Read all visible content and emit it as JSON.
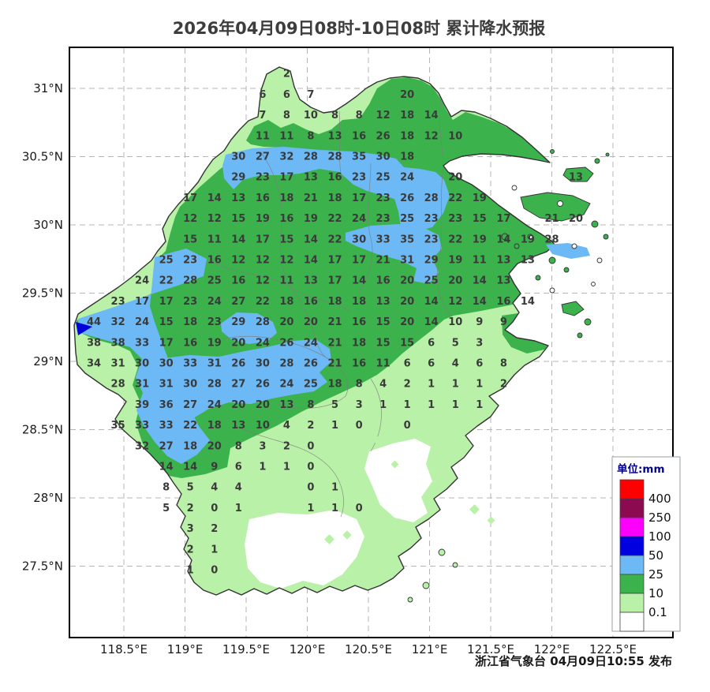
{
  "title": "2026年04月09日08时-10日08时 累计降水预报",
  "publisher": "浙江省气象台 04月09日10:55 发布",
  "legend": {
    "title": "单位:mm",
    "swatches": [
      "#fe0000",
      "#8b0a50",
      "#fd00fd",
      "#0000e1",
      "#6db9f5",
      "#3cb24c",
      "#b9f1a8",
      "#ffffff"
    ],
    "labels": [
      "400",
      "250",
      "100",
      "50",
      "25",
      "10",
      "0.1"
    ]
  },
  "axes": {
    "lat_labels": [
      "31°N",
      "30.5°N",
      "30°N",
      "29.5°N",
      "29°N",
      "28.5°N",
      "28°N",
      "27.5°N"
    ],
    "lon_labels": [
      "118.5°E",
      "119°E",
      "119.5°E",
      "120°E",
      "120.5°E",
      "121°E",
      "121.5°E",
      "122°E",
      "122.5°E"
    ]
  },
  "colors": {
    "green": "#3cb24c",
    "light_green": "#b9f1a8",
    "light_blue": "#6db9f5",
    "dark_blue": "#0000dd",
    "white": "#ffffff"
  },
  "chart_data": {
    "type": "heatmap",
    "subtype": "gridded-precipitation-map",
    "unit": "mm",
    "region": "浙江省",
    "legend_thresholds": [
      400,
      250,
      100,
      50,
      25,
      10,
      0.1
    ],
    "values": [
      [
        0,
        8,
        2
      ],
      [
        1,
        7,
        6
      ],
      [
        1,
        8,
        6
      ],
      [
        1,
        9,
        7
      ],
      [
        1,
        13,
        20
      ],
      [
        2,
        7,
        7
      ],
      [
        2,
        8,
        8
      ],
      [
        2,
        9,
        10
      ],
      [
        2,
        10,
        8
      ],
      [
        2,
        11,
        8
      ],
      [
        2,
        12,
        12
      ],
      [
        2,
        13,
        18
      ],
      [
        2,
        14,
        14
      ],
      [
        3,
        7,
        11
      ],
      [
        3,
        8,
        11
      ],
      [
        3,
        9,
        8
      ],
      [
        3,
        10,
        13
      ],
      [
        3,
        11,
        16
      ],
      [
        3,
        12,
        26
      ],
      [
        3,
        13,
        18
      ],
      [
        3,
        14,
        12
      ],
      [
        3,
        15,
        10
      ],
      [
        4,
        6,
        30
      ],
      [
        4,
        7,
        27
      ],
      [
        4,
        8,
        32
      ],
      [
        4,
        9,
        28
      ],
      [
        4,
        10,
        28
      ],
      [
        4,
        11,
        35
      ],
      [
        4,
        12,
        30
      ],
      [
        4,
        13,
        18
      ],
      [
        5,
        6,
        29
      ],
      [
        5,
        7,
        23
      ],
      [
        5,
        8,
        17
      ],
      [
        5,
        9,
        13
      ],
      [
        5,
        10,
        16
      ],
      [
        5,
        11,
        23
      ],
      [
        5,
        12,
        25
      ],
      [
        5,
        13,
        24
      ],
      [
        5,
        15,
        20
      ],
      [
        5,
        20,
        13
      ],
      [
        6,
        4,
        17
      ],
      [
        6,
        5,
        14
      ],
      [
        6,
        6,
        13
      ],
      [
        6,
        7,
        16
      ],
      [
        6,
        8,
        18
      ],
      [
        6,
        9,
        21
      ],
      [
        6,
        10,
        18
      ],
      [
        6,
        11,
        17
      ],
      [
        6,
        12,
        23
      ],
      [
        6,
        13,
        26
      ],
      [
        6,
        14,
        28
      ],
      [
        6,
        15,
        22
      ],
      [
        6,
        16,
        19
      ],
      [
        7,
        4,
        12
      ],
      [
        7,
        5,
        12
      ],
      [
        7,
        6,
        15
      ],
      [
        7,
        7,
        19
      ],
      [
        7,
        8,
        16
      ],
      [
        7,
        9,
        19
      ],
      [
        7,
        10,
        22
      ],
      [
        7,
        11,
        24
      ],
      [
        7,
        12,
        23
      ],
      [
        7,
        13,
        25
      ],
      [
        7,
        14,
        23
      ],
      [
        7,
        15,
        23
      ],
      [
        7,
        16,
        15
      ],
      [
        7,
        17,
        17
      ],
      [
        7,
        19,
        21
      ],
      [
        7,
        20,
        20
      ],
      [
        8,
        4,
        15
      ],
      [
        8,
        5,
        11
      ],
      [
        8,
        6,
        14
      ],
      [
        8,
        7,
        17
      ],
      [
        8,
        8,
        15
      ],
      [
        8,
        9,
        14
      ],
      [
        8,
        10,
        22
      ],
      [
        8,
        11,
        30
      ],
      [
        8,
        12,
        33
      ],
      [
        8,
        13,
        35
      ],
      [
        8,
        14,
        23
      ],
      [
        8,
        15,
        22
      ],
      [
        8,
        16,
        19
      ],
      [
        8,
        17,
        14
      ],
      [
        8,
        18,
        19
      ],
      [
        8,
        19,
        28
      ],
      [
        9,
        3,
        25
      ],
      [
        9,
        4,
        23
      ],
      [
        9,
        5,
        16
      ],
      [
        9,
        6,
        12
      ],
      [
        9,
        7,
        12
      ],
      [
        9,
        8,
        12
      ],
      [
        9,
        9,
        14
      ],
      [
        9,
        10,
        17
      ],
      [
        9,
        11,
        17
      ],
      [
        9,
        12,
        21
      ],
      [
        9,
        13,
        31
      ],
      [
        9,
        14,
        29
      ],
      [
        9,
        15,
        19
      ],
      [
        9,
        16,
        11
      ],
      [
        9,
        17,
        13
      ],
      [
        9,
        18,
        13
      ],
      [
        10,
        2,
        24
      ],
      [
        10,
        3,
        22
      ],
      [
        10,
        4,
        28
      ],
      [
        10,
        5,
        25
      ],
      [
        10,
        6,
        16
      ],
      [
        10,
        7,
        12
      ],
      [
        10,
        8,
        11
      ],
      [
        10,
        9,
        13
      ],
      [
        10,
        10,
        17
      ],
      [
        10,
        11,
        14
      ],
      [
        10,
        12,
        16
      ],
      [
        10,
        13,
        20
      ],
      [
        10,
        14,
        25
      ],
      [
        10,
        15,
        20
      ],
      [
        10,
        16,
        14
      ],
      [
        10,
        17,
        13
      ],
      [
        11,
        1,
        23
      ],
      [
        11,
        2,
        17
      ],
      [
        11,
        3,
        17
      ],
      [
        11,
        4,
        23
      ],
      [
        11,
        5,
        24
      ],
      [
        11,
        6,
        27
      ],
      [
        11,
        7,
        22
      ],
      [
        11,
        8,
        18
      ],
      [
        11,
        9,
        16
      ],
      [
        11,
        10,
        18
      ],
      [
        11,
        11,
        18
      ],
      [
        11,
        12,
        13
      ],
      [
        11,
        13,
        20
      ],
      [
        11,
        14,
        14
      ],
      [
        11,
        15,
        12
      ],
      [
        11,
        16,
        14
      ],
      [
        11,
        17,
        16
      ],
      [
        11,
        18,
        14
      ],
      [
        12,
        0,
        44
      ],
      [
        12,
        1,
        32
      ],
      [
        12,
        2,
        24
      ],
      [
        12,
        3,
        15
      ],
      [
        12,
        4,
        18
      ],
      [
        12,
        5,
        23
      ],
      [
        12,
        6,
        29
      ],
      [
        12,
        7,
        28
      ],
      [
        12,
        8,
        20
      ],
      [
        12,
        9,
        20
      ],
      [
        12,
        10,
        21
      ],
      [
        12,
        11,
        16
      ],
      [
        12,
        12,
        15
      ],
      [
        12,
        13,
        20
      ],
      [
        12,
        14,
        14
      ],
      [
        12,
        15,
        10
      ],
      [
        12,
        16,
        9
      ],
      [
        12,
        17,
        9
      ],
      [
        13,
        0,
        38
      ],
      [
        13,
        1,
        38
      ],
      [
        13,
        2,
        33
      ],
      [
        13,
        3,
        17
      ],
      [
        13,
        4,
        16
      ],
      [
        13,
        5,
        19
      ],
      [
        13,
        6,
        20
      ],
      [
        13,
        7,
        24
      ],
      [
        13,
        8,
        26
      ],
      [
        13,
        9,
        24
      ],
      [
        13,
        10,
        21
      ],
      [
        13,
        11,
        18
      ],
      [
        13,
        12,
        15
      ],
      [
        13,
        13,
        15
      ],
      [
        13,
        14,
        6
      ],
      [
        13,
        15,
        5
      ],
      [
        13,
        16,
        3
      ],
      [
        14,
        0,
        34
      ],
      [
        14,
        1,
        31
      ],
      [
        14,
        2,
        30
      ],
      [
        14,
        3,
        30
      ],
      [
        14,
        4,
        33
      ],
      [
        14,
        5,
        31
      ],
      [
        14,
        6,
        26
      ],
      [
        14,
        7,
        30
      ],
      [
        14,
        8,
        28
      ],
      [
        14,
        9,
        26
      ],
      [
        14,
        10,
        21
      ],
      [
        14,
        11,
        16
      ],
      [
        14,
        12,
        11
      ],
      [
        14,
        13,
        6
      ],
      [
        14,
        14,
        6
      ],
      [
        14,
        15,
        4
      ],
      [
        14,
        16,
        6
      ],
      [
        14,
        17,
        8
      ],
      [
        15,
        1,
        28
      ],
      [
        15,
        2,
        31
      ],
      [
        15,
        3,
        31
      ],
      [
        15,
        4,
        30
      ],
      [
        15,
        5,
        28
      ],
      [
        15,
        6,
        27
      ],
      [
        15,
        7,
        26
      ],
      [
        15,
        8,
        24
      ],
      [
        15,
        9,
        25
      ],
      [
        15,
        10,
        18
      ],
      [
        15,
        11,
        8
      ],
      [
        15,
        12,
        4
      ],
      [
        15,
        13,
        2
      ],
      [
        15,
        14,
        1
      ],
      [
        15,
        15,
        1
      ],
      [
        15,
        16,
        1
      ],
      [
        15,
        17,
        2
      ],
      [
        16,
        2,
        39
      ],
      [
        16,
        3,
        36
      ],
      [
        16,
        4,
        27
      ],
      [
        16,
        5,
        24
      ],
      [
        16,
        6,
        20
      ],
      [
        16,
        7,
        20
      ],
      [
        16,
        8,
        13
      ],
      [
        16,
        9,
        8
      ],
      [
        16,
        10,
        5
      ],
      [
        16,
        11,
        3
      ],
      [
        16,
        12,
        1
      ],
      [
        16,
        13,
        1
      ],
      [
        16,
        14,
        1
      ],
      [
        16,
        15,
        1
      ],
      [
        16,
        16,
        1
      ],
      [
        17,
        1,
        35
      ],
      [
        17,
        2,
        33
      ],
      [
        17,
        3,
        33
      ],
      [
        17,
        4,
        22
      ],
      [
        17,
        5,
        18
      ],
      [
        17,
        6,
        13
      ],
      [
        17,
        7,
        10
      ],
      [
        17,
        8,
        4
      ],
      [
        17,
        9,
        2
      ],
      [
        17,
        10,
        1
      ],
      [
        17,
        11,
        0
      ],
      [
        17,
        13,
        0
      ],
      [
        18,
        2,
        32
      ],
      [
        18,
        3,
        27
      ],
      [
        18,
        4,
        18
      ],
      [
        18,
        5,
        20
      ],
      [
        18,
        6,
        8
      ],
      [
        18,
        7,
        3
      ],
      [
        18,
        8,
        2
      ],
      [
        18,
        9,
        0
      ],
      [
        19,
        3,
        14
      ],
      [
        19,
        4,
        14
      ],
      [
        19,
        5,
        9
      ],
      [
        19,
        6,
        6
      ],
      [
        19,
        7,
        1
      ],
      [
        19,
        8,
        1
      ],
      [
        19,
        9,
        0
      ],
      [
        20,
        3,
        8
      ],
      [
        20,
        4,
        5
      ],
      [
        20,
        5,
        4
      ],
      [
        20,
        6,
        4
      ],
      [
        20,
        9,
        0
      ],
      [
        20,
        10,
        1
      ],
      [
        21,
        3,
        5
      ],
      [
        21,
        4,
        2
      ],
      [
        21,
        5,
        0
      ],
      [
        21,
        6,
        1
      ],
      [
        21,
        9,
        1
      ],
      [
        21,
        10,
        1
      ],
      [
        21,
        11,
        0
      ],
      [
        22,
        4,
        3
      ],
      [
        22,
        5,
        2
      ],
      [
        23,
        4,
        2
      ],
      [
        23,
        5,
        1
      ],
      [
        24,
        4,
        1
      ],
      [
        24,
        5,
        0
      ]
    ]
  }
}
